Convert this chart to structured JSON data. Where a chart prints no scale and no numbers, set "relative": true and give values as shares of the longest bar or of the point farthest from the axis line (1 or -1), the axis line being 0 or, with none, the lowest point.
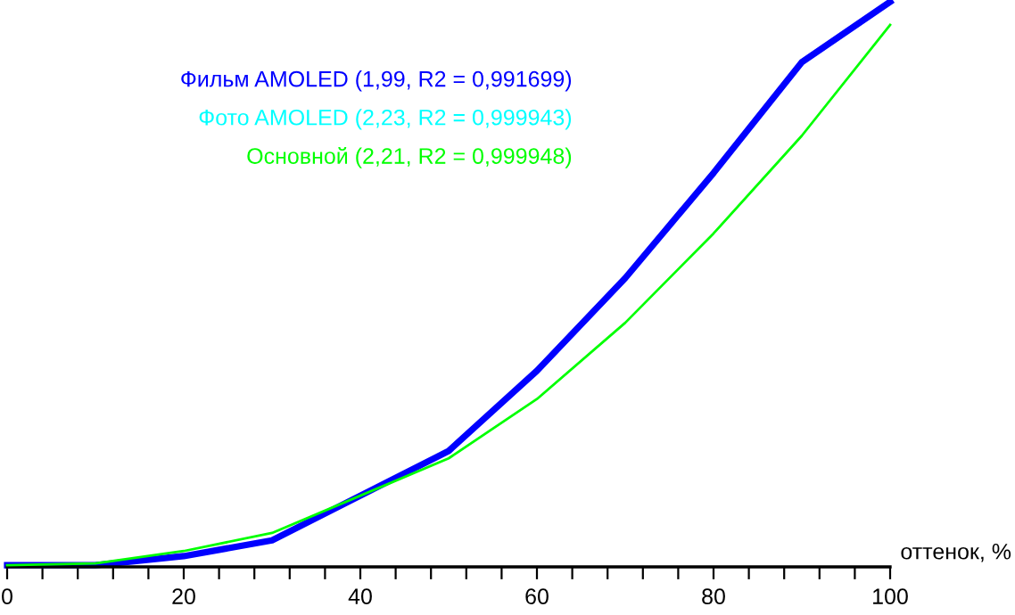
{
  "chart_data": {
    "type": "line",
    "relative": true,
    "xlabel": "оттенок, %",
    "xlim": [
      0,
      100
    ],
    "xticks": [
      0,
      {
        "value": 4,
        "label": null
      },
      {
        "value": 8,
        "label": null
      },
      {
        "value": 12,
        "label": null
      },
      {
        "value": 16,
        "label": null
      },
      20,
      {
        "value": 24,
        "label": null
      },
      {
        "value": 28,
        "label": null
      },
      {
        "value": 32,
        "label": null
      },
      {
        "value": 36,
        "label": null
      },
      40,
      {
        "value": 44,
        "label": null
      },
      {
        "value": 48,
        "label": null
      },
      {
        "value": 52,
        "label": null
      },
      {
        "value": 56,
        "label": null
      },
      60,
      {
        "value": 64,
        "label": null
      },
      {
        "value": 68,
        "label": null
      },
      {
        "value": 72,
        "label": null
      },
      {
        "value": 76,
        "label": null
      },
      80,
      {
        "value": 84,
        "label": null
      },
      {
        "value": 88,
        "label": null
      },
      {
        "value": 92,
        "label": null
      },
      {
        "value": 96,
        "label": null
      },
      100
    ],
    "x": [
      0,
      10,
      20,
      30,
      40,
      50,
      60,
      70,
      80,
      90,
      100
    ],
    "series": [
      {
        "name": "Фильм AMOLED (1,99, R2 = 0,991699)",
        "color": "#0000ff",
        "values": [
          0.003,
          0.003,
          0.019,
          0.047,
          0.126,
          0.205,
          0.347,
          0.511,
          0.697,
          0.893,
          1.0
        ]
      },
      {
        "name": "Фото AMOLED (2,23, R2 = 0,999943)",
        "color": "#00ffff",
        "values": [
          null,
          null,
          null,
          null,
          null,
          null,
          null,
          null,
          null,
          null,
          null
        ]
      },
      {
        "name": "Основной (2,21, R2 = 0,999948)",
        "color": "#00ff00",
        "values": [
          0.003,
          0.006,
          0.028,
          0.06,
          0.126,
          0.192,
          0.297,
          0.432,
          0.59,
          0.763,
          0.959
        ]
      }
    ],
    "legend": "top left",
    "grid": false,
    "marker": "none",
    "line_style": "solid"
  }
}
